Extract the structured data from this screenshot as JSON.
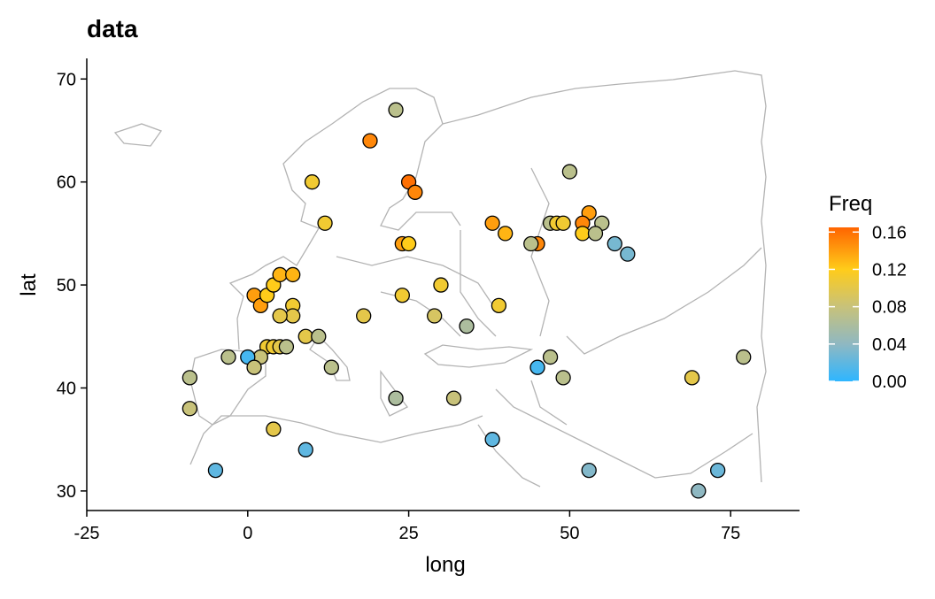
{
  "chart_data": {
    "type": "scatter",
    "title": "data",
    "x_label": "long",
    "y_label": "lat",
    "x": [
      23,
      19,
      10,
      25,
      26,
      12,
      24,
      25,
      38,
      40,
      45,
      44,
      50,
      47,
      48,
      49,
      53,
      52,
      52,
      55,
      54,
      57,
      59,
      1,
      2,
      3,
      4,
      5,
      7,
      7,
      7,
      5,
      24,
      30,
      18,
      29,
      39,
      34,
      9,
      11,
      3,
      4,
      5,
      6,
      2,
      0,
      1,
      -3,
      13,
      -9,
      -9,
      23,
      32,
      45,
      47,
      49,
      69,
      77,
      4,
      9,
      38,
      -5,
      53,
      73,
      70
    ],
    "y": [
      67,
      64,
      60,
      60,
      59,
      56,
      54,
      54,
      56,
      55,
      54,
      54,
      61,
      56,
      56,
      56,
      57,
      56,
      55,
      56,
      55,
      54,
      53,
      49,
      48,
      49,
      50,
      51,
      51,
      48,
      47,
      47,
      49,
      50,
      47,
      47,
      48,
      46,
      45,
      45,
      44,
      44,
      44,
      44,
      43,
      43,
      42,
      43,
      42,
      41,
      38,
      39,
      39,
      42,
      43,
      41,
      41,
      43,
      36,
      34,
      35,
      32,
      32,
      32,
      30
    ],
    "values": [
      0.07,
      0.15,
      0.11,
      0.16,
      0.15,
      0.11,
      0.14,
      0.12,
      0.14,
      0.13,
      0.15,
      0.07,
      0.07,
      0.07,
      0.11,
      0.11,
      0.14,
      0.15,
      0.12,
      0.07,
      0.07,
      0.03,
      0.03,
      0.14,
      0.14,
      0.12,
      0.12,
      0.13,
      0.13,
      0.11,
      0.1,
      0.1,
      0.11,
      0.11,
      0.1,
      0.09,
      0.11,
      0.06,
      0.1,
      0.07,
      0.11,
      0.11,
      0.1,
      0.07,
      0.08,
      0.01,
      0.08,
      0.07,
      0.07,
      0.07,
      0.08,
      0.06,
      0.08,
      0.01,
      0.07,
      0.07,
      0.1,
      0.07,
      0.1,
      0.02,
      0.02,
      0.02,
      0.035,
      0.025,
      0.04
    ],
    "xlim": [
      -25,
      85.7
    ],
    "ylim": [
      28.1,
      72
    ],
    "xticks": [
      -25,
      0,
      25,
      50,
      75
    ],
    "yticks": [
      30,
      40,
      50,
      60,
      70
    ],
    "legend_title": "Freq",
    "clim": [
      0,
      0.165
    ],
    "cticks": [
      {
        "value": 0,
        "label": "0.00"
      },
      0.04,
      0.08,
      0.12,
      0.16
    ],
    "color_stops": [
      {
        "value": 0,
        "color": "#2eb6ff"
      },
      {
        "value": 0.04,
        "color": "#8fb8c2"
      },
      {
        "value": 0.08,
        "color": "#c8c27a"
      },
      {
        "value": 0.12,
        "color": "#ffcc1a"
      },
      {
        "value": 0.165,
        "color": "#ff6400"
      }
    ]
  }
}
